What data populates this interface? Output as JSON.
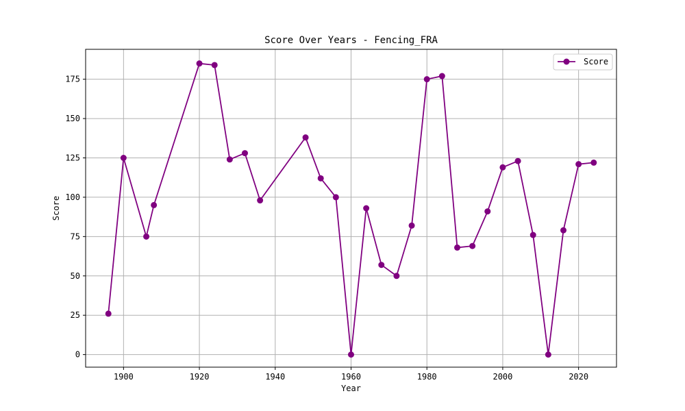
{
  "chart_data": {
    "type": "line",
    "title": "Score Over Years - Fencing_FRA",
    "xlabel": "Year",
    "ylabel": "Score",
    "xlim": [
      1890,
      2030
    ],
    "ylim": [
      -8,
      194
    ],
    "xticks": [
      1900,
      1920,
      1940,
      1960,
      1980,
      2000,
      2020
    ],
    "yticks": [
      0,
      25,
      50,
      75,
      100,
      125,
      150,
      175
    ],
    "grid": true,
    "legend_position": "top-right",
    "series": [
      {
        "name": "Score",
        "color": "#800080",
        "marker": "circle",
        "x": [
          1896,
          1900,
          1906,
          1908,
          1920,
          1924,
          1928,
          1932,
          1936,
          1948,
          1952,
          1956,
          1960,
          1964,
          1968,
          1972,
          1976,
          1980,
          1984,
          1988,
          1992,
          1996,
          2000,
          2004,
          2008,
          2012,
          2016,
          2020,
          2024
        ],
        "y": [
          26,
          125,
          75,
          95,
          185,
          184,
          124,
          128,
          98,
          138,
          112,
          100,
          0,
          93,
          57,
          50,
          82,
          175,
          177,
          68,
          69,
          91,
          119,
          123,
          76,
          0,
          79,
          121,
          122
        ]
      }
    ]
  }
}
